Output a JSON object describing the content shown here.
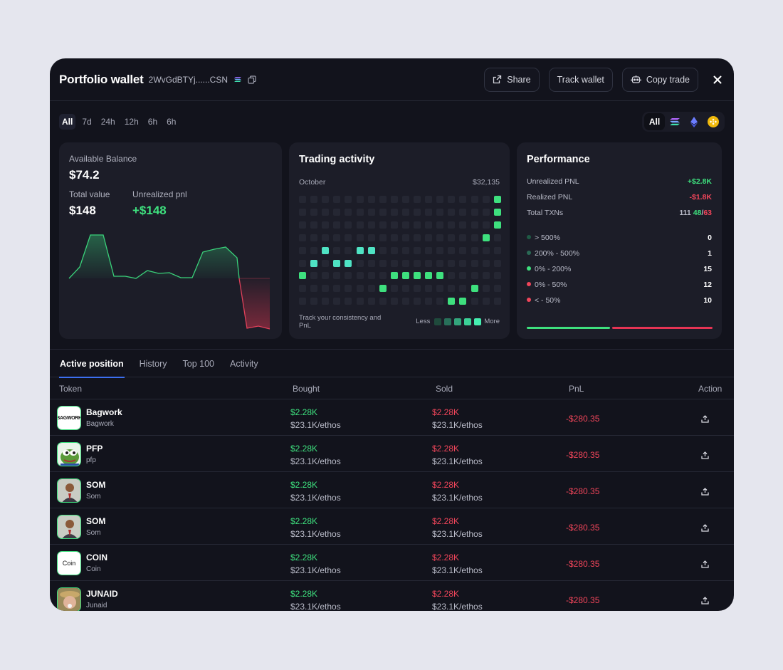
{
  "header": {
    "title": "Portfolio wallet",
    "address": "2WvGdBTYj......CSN",
    "share_label": "Share",
    "track_label": "Track wallet",
    "copy_trade_label": "Copy trade"
  },
  "time_filters": [
    "All",
    "7d",
    "24h",
    "12h",
    "6h",
    "6h"
  ],
  "active_time_filter": "All",
  "chain_filter": {
    "all_label": "All",
    "chains": [
      "solana-icon",
      "ethereum-icon",
      "bnb-icon"
    ]
  },
  "balance_card": {
    "available_label": "Available Balance",
    "available_value": "$74.2",
    "total_label": "Total value",
    "total_value": "$148",
    "unrealized_label": "Unrealized pnl",
    "unrealized_value": "+$148"
  },
  "trading_activity": {
    "title": "Trading activity",
    "month": "October",
    "total": "$32,135",
    "footer": "Track your consistency and PnL",
    "less_label": "Less",
    "more_label": "More"
  },
  "performance": {
    "title": "Performance",
    "unrealized_label": "Unrealized PNL",
    "unrealized_value": "+$2.8K",
    "realized_label": "Realized PNL",
    "realized_value": "-$1.8K",
    "txns_label": "Total TXNs",
    "txns_total": "111",
    "txns_buy": "48",
    "txns_sell": "63",
    "buckets": [
      {
        "label": "> 500%",
        "count": "0",
        "color": "#1f5a45"
      },
      {
        "label": "200% - 500%",
        "count": "1",
        "color": "#2a6a55"
      },
      {
        "label": "0% - 200%",
        "count": "15",
        "color": "#3ee07e"
      },
      {
        "label": "0% - 50%",
        "count": "12",
        "color": "#f0455a"
      },
      {
        "label": "< - 50%",
        "count": "10",
        "color": "#f0455a"
      }
    ]
  },
  "tabs": [
    "Active position",
    "History",
    "Top 100",
    "Activity"
  ],
  "table": {
    "headers": {
      "token": "Token",
      "bought": "Bought",
      "sold": "Sold",
      "pnl": "PnL",
      "action": "Action"
    },
    "rows": [
      {
        "name": "Bagwork",
        "sub": "Bagwork",
        "bought": "$2.28K",
        "bought_sub": "$23.1K/ethos",
        "sold": "$2.28K",
        "sold_sub": "$23.1K/ethos",
        "pnl": "-$280.35",
        "avatar_text": "BAGWORK"
      },
      {
        "name": "PFP",
        "sub": "pfp",
        "bought": "$2.28K",
        "bought_sub": "$23.1K/ethos",
        "sold": "$2.28K",
        "sold_sub": "$23.1K/ethos",
        "pnl": "-$280.35",
        "avatar_text": ""
      },
      {
        "name": "SOM",
        "sub": "Som",
        "bought": "$2.28K",
        "bought_sub": "$23.1K/ethos",
        "sold": "$2.28K",
        "sold_sub": "$23.1K/ethos",
        "pnl": "-$280.35",
        "avatar_text": ""
      },
      {
        "name": "SOM",
        "sub": "Som",
        "bought": "$2.28K",
        "bought_sub": "$23.1K/ethos",
        "sold": "$2.28K",
        "sold_sub": "$23.1K/ethos",
        "pnl": "-$280.35",
        "avatar_text": ""
      },
      {
        "name": "COIN",
        "sub": "Coin",
        "bought": "$2.28K",
        "bought_sub": "$23.1K/ethos",
        "sold": "$2.28K",
        "sold_sub": "$23.1K/ethos",
        "pnl": "-$280.35",
        "avatar_text": "Coin"
      },
      {
        "name": "JUNAID",
        "sub": "Junaid",
        "bought": "$2.28K",
        "bought_sub": "$23.1K/ethos",
        "sold": "$2.28K",
        "sold_sub": "$23.1K/ethos",
        "pnl": "-$280.35",
        "avatar_text": ""
      }
    ]
  },
  "colors": {
    "green": "#3ee07e",
    "red": "#f0455a",
    "accent": "#3c6ff0",
    "bg": "#12131c"
  }
}
